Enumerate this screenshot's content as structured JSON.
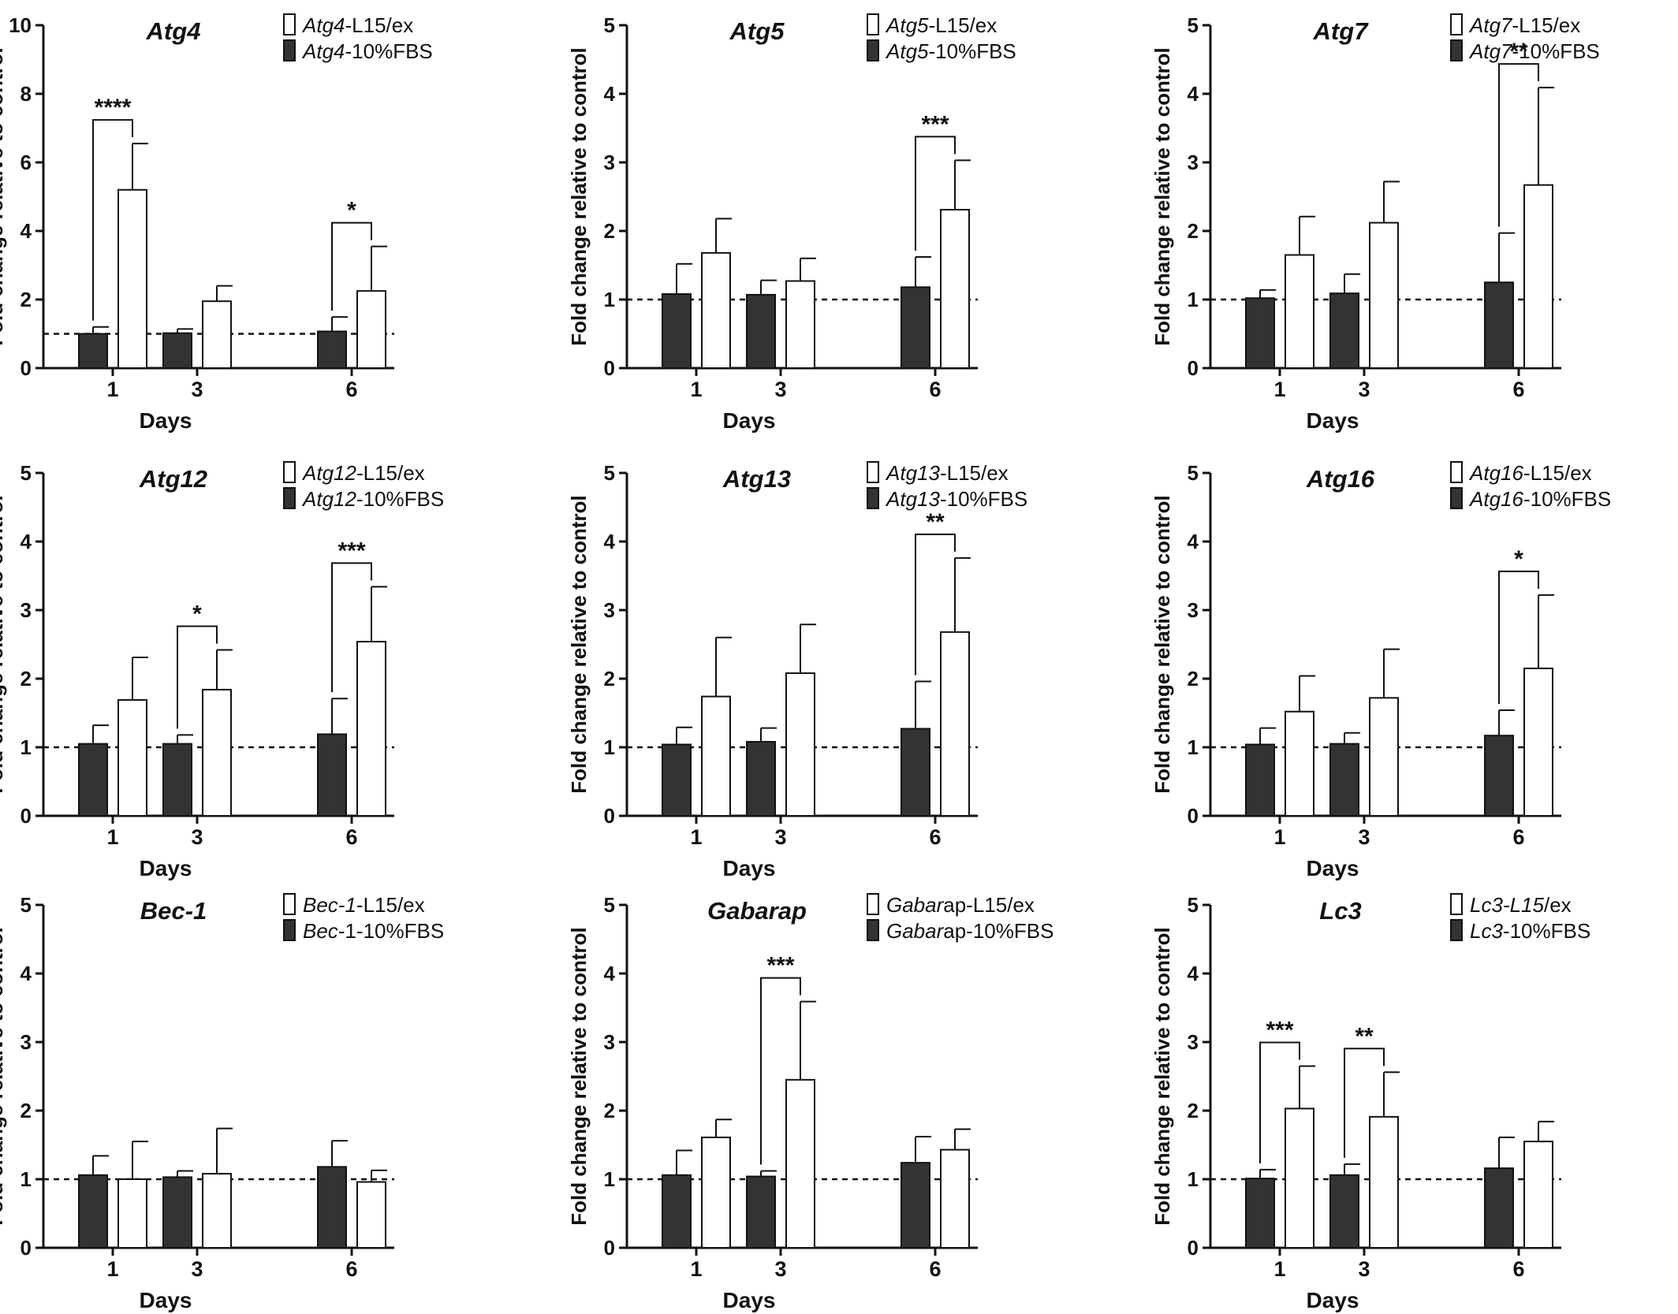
{
  "chart_data": [
    {
      "type": "bar",
      "title": "Atg4",
      "xlabel": "Days",
      "ylabel": "Fold change relative to control",
      "categories": [
        "1",
        "3",
        "6"
      ],
      "ylim": [
        0,
        10
      ],
      "yticks": [
        "0",
        "2",
        "4",
        "6",
        "8",
        "10"
      ],
      "reference_line": 1,
      "legend": [
        {
          "gene": "Atg4",
          "suffix": "-L15/ex",
          "fill": "#ffffff"
        },
        {
          "gene": "Atg4",
          "suffix": "-10%FBS",
          "fill": "#333333"
        }
      ],
      "series": [
        {
          "name": "Atg4-10%FBS",
          "values": [
            1.0,
            1.02,
            1.07
          ],
          "errors": [
            0.2,
            0.12,
            0.42
          ]
        },
        {
          "name": "Atg4-L15/ex",
          "values": [
            5.2,
            1.95,
            2.25
          ],
          "errors": [
            1.35,
            0.45,
            1.3
          ]
        }
      ],
      "significance": [
        {
          "category": "1",
          "label": "****"
        },
        {
          "category": "6",
          "label": "*"
        }
      ]
    },
    {
      "type": "bar",
      "title": "Atg5",
      "xlabel": "Days",
      "ylabel": "Fold change relative to control",
      "categories": [
        "1",
        "3",
        "6"
      ],
      "ylim": [
        0,
        5
      ],
      "yticks": [
        "0",
        "1",
        "2",
        "3",
        "4",
        "5"
      ],
      "reference_line": 1,
      "legend": [
        {
          "gene": "Atg5",
          "suffix": "-L15/ex",
          "fill": "#ffffff"
        },
        {
          "gene": "Atg5",
          "suffix": "-10%FBS",
          "fill": "#333333"
        }
      ],
      "series": [
        {
          "name": "Atg5-10%FBS",
          "values": [
            1.08,
            1.07,
            1.18
          ],
          "errors": [
            0.44,
            0.21,
            0.44
          ]
        },
        {
          "name": "Atg5-L15/ex",
          "values": [
            1.68,
            1.27,
            2.31
          ],
          "errors": [
            0.5,
            0.33,
            0.72
          ]
        }
      ],
      "significance": [
        {
          "category": "6",
          "label": "***"
        }
      ]
    },
    {
      "type": "bar",
      "title": "Atg7",
      "xlabel": "Days",
      "ylabel": "Fold change relative to control",
      "categories": [
        "1",
        "3",
        "6"
      ],
      "ylim": [
        0,
        5
      ],
      "yticks": [
        "0",
        "1",
        "2",
        "3",
        "4",
        "5"
      ],
      "reference_line": 1,
      "legend": [
        {
          "gene": "Atg7",
          "suffix": "-L15/ex",
          "fill": "#ffffff"
        },
        {
          "gene": "Atg7",
          "suffix": "-10%FBS",
          "fill": "#333333"
        }
      ],
      "series": [
        {
          "name": "Atg7-10%FBS",
          "values": [
            1.02,
            1.09,
            1.25
          ],
          "errors": [
            0.12,
            0.28,
            0.72
          ]
        },
        {
          "name": "Atg7-L15/ex",
          "values": [
            1.65,
            2.12,
            2.67
          ],
          "errors": [
            0.56,
            0.6,
            1.42
          ]
        }
      ],
      "significance": [
        {
          "category": "6",
          "label": "**"
        }
      ]
    },
    {
      "type": "bar",
      "title": "Atg12",
      "xlabel": "Days",
      "ylabel": "Fold change relative to control",
      "categories": [
        "1",
        "3",
        "6"
      ],
      "ylim": [
        0,
        5
      ],
      "yticks": [
        "0",
        "1",
        "2",
        "3",
        "4",
        "5"
      ],
      "reference_line": 1,
      "legend": [
        {
          "gene": "Atg12",
          "suffix": "-L15/ex",
          "fill": "#ffffff"
        },
        {
          "gene": "Atg12",
          "suffix": "-10%FBS",
          "fill": "#333333"
        }
      ],
      "series": [
        {
          "name": "Atg12-10%FBS",
          "values": [
            1.05,
            1.05,
            1.19
          ],
          "errors": [
            0.27,
            0.13,
            0.52
          ]
        },
        {
          "name": "Atg12-L15/ex",
          "values": [
            1.69,
            1.84,
            2.54
          ],
          "errors": [
            0.62,
            0.58,
            0.8
          ]
        }
      ],
      "significance": [
        {
          "category": "3",
          "label": "*"
        },
        {
          "category": "6",
          "label": "***"
        }
      ]
    },
    {
      "type": "bar",
      "title": "Atg13",
      "xlabel": "Days",
      "ylabel": "Fold change relative to control",
      "categories": [
        "1",
        "3",
        "6"
      ],
      "ylim": [
        0,
        5
      ],
      "yticks": [
        "0",
        "1",
        "2",
        "3",
        "4",
        "5"
      ],
      "reference_line": 1,
      "legend": [
        {
          "gene": "Atg13",
          "suffix": "-L15/ex",
          "fill": "#ffffff"
        },
        {
          "gene": "Atg13",
          "suffix": "-10%FBS",
          "fill": "#333333"
        }
      ],
      "series": [
        {
          "name": "Atg13-10%FBS",
          "values": [
            1.04,
            1.08,
            1.27
          ],
          "errors": [
            0.25,
            0.2,
            0.69
          ]
        },
        {
          "name": "Atg13-L15/ex",
          "values": [
            1.74,
            2.08,
            2.68
          ],
          "errors": [
            0.86,
            0.71,
            1.08
          ]
        }
      ],
      "significance": [
        {
          "category": "6",
          "label": "**"
        }
      ]
    },
    {
      "type": "bar",
      "title": "Atg16",
      "xlabel": "Days",
      "ylabel": "Fold change relative to control",
      "categories": [
        "1",
        "3",
        "6"
      ],
      "ylim": [
        0,
        5
      ],
      "yticks": [
        "0",
        "1",
        "2",
        "3",
        "4",
        "5"
      ],
      "reference_line": 1,
      "legend": [
        {
          "gene": "Atg16",
          "suffix": "-L15/ex",
          "fill": "#ffffff"
        },
        {
          "gene": "Atg16",
          "suffix": "-10%FBS",
          "fill": "#333333"
        }
      ],
      "series": [
        {
          "name": "Atg16-10%FBS",
          "values": [
            1.04,
            1.05,
            1.17
          ],
          "errors": [
            0.24,
            0.16,
            0.37
          ]
        },
        {
          "name": "Atg16-L15/ex",
          "values": [
            1.52,
            1.72,
            2.15
          ],
          "errors": [
            0.52,
            0.71,
            1.07
          ]
        }
      ],
      "significance": [
        {
          "category": "6",
          "label": "*"
        }
      ]
    },
    {
      "type": "bar",
      "title": "Bec-1",
      "xlabel": "Days",
      "ylabel": "Fold change relative to control",
      "categories": [
        "1",
        "3",
        "6"
      ],
      "ylim": [
        0,
        5
      ],
      "yticks": [
        "0",
        "1",
        "2",
        "3",
        "4",
        "5"
      ],
      "reference_line": 1,
      "legend": [
        {
          "gene": "Bec-1",
          "suffix": "-L15/ex",
          "fill": "#ffffff"
        },
        {
          "gene": "Bec",
          "suffix": "-1-10%FBS",
          "fill": "#333333"
        }
      ],
      "series": [
        {
          "name": "Bec-1-10%FBS",
          "values": [
            1.06,
            1.03,
            1.18
          ],
          "errors": [
            0.28,
            0.09,
            0.38
          ]
        },
        {
          "name": "Bec-1-L15/ex",
          "values": [
            1.0,
            1.08,
            0.96
          ],
          "errors": [
            0.55,
            0.66,
            0.17
          ]
        }
      ],
      "significance": []
    },
    {
      "type": "bar",
      "title": "Gabarap",
      "xlabel": "Days",
      "ylabel": "Fold change relative to control",
      "categories": [
        "1",
        "3",
        "6"
      ],
      "ylim": [
        0,
        5
      ],
      "yticks": [
        "0",
        "1",
        "2",
        "3",
        "4",
        "5"
      ],
      "reference_line": 1,
      "legend": [
        {
          "gene": "Gabar",
          "suffix": "ap-L15/ex",
          "fill": "#ffffff"
        },
        {
          "gene": "Gabar",
          "suffix": "ap-10%FBS",
          "fill": "#333333"
        }
      ],
      "series": [
        {
          "name": "Gabarap-10%FBS",
          "values": [
            1.06,
            1.04,
            1.24
          ],
          "errors": [
            0.36,
            0.08,
            0.38
          ]
        },
        {
          "name": "Gabarap-L15/ex",
          "values": [
            1.61,
            2.45,
            1.43
          ],
          "errors": [
            0.26,
            1.14,
            0.3
          ]
        }
      ],
      "significance": [
        {
          "category": "3",
          "label": "***"
        }
      ]
    },
    {
      "type": "bar",
      "title": "Lc3",
      "xlabel": "Days",
      "ylabel": "Fold change relative to control",
      "categories": [
        "1",
        "3",
        "6"
      ],
      "ylim": [
        0,
        5
      ],
      "yticks": [
        "0",
        "1",
        "2",
        "3",
        "4",
        "5"
      ],
      "reference_line": 1,
      "legend": [
        {
          "gene": "Lc3-L15",
          "suffix": "/ex",
          "fill": "#ffffff"
        },
        {
          "gene": "Lc3",
          "suffix": "-10%FBS",
          "fill": "#333333"
        }
      ],
      "series": [
        {
          "name": "Lc3-10%FBS",
          "values": [
            1.01,
            1.06,
            1.16
          ],
          "errors": [
            0.13,
            0.16,
            0.45
          ]
        },
        {
          "name": "Lc3-L15/ex",
          "values": [
            2.03,
            1.91,
            1.55
          ],
          "errors": [
            0.62,
            0.65,
            0.29
          ]
        }
      ],
      "significance": [
        {
          "category": "1",
          "label": "***"
        },
        {
          "category": "3",
          "label": "**"
        }
      ]
    }
  ]
}
